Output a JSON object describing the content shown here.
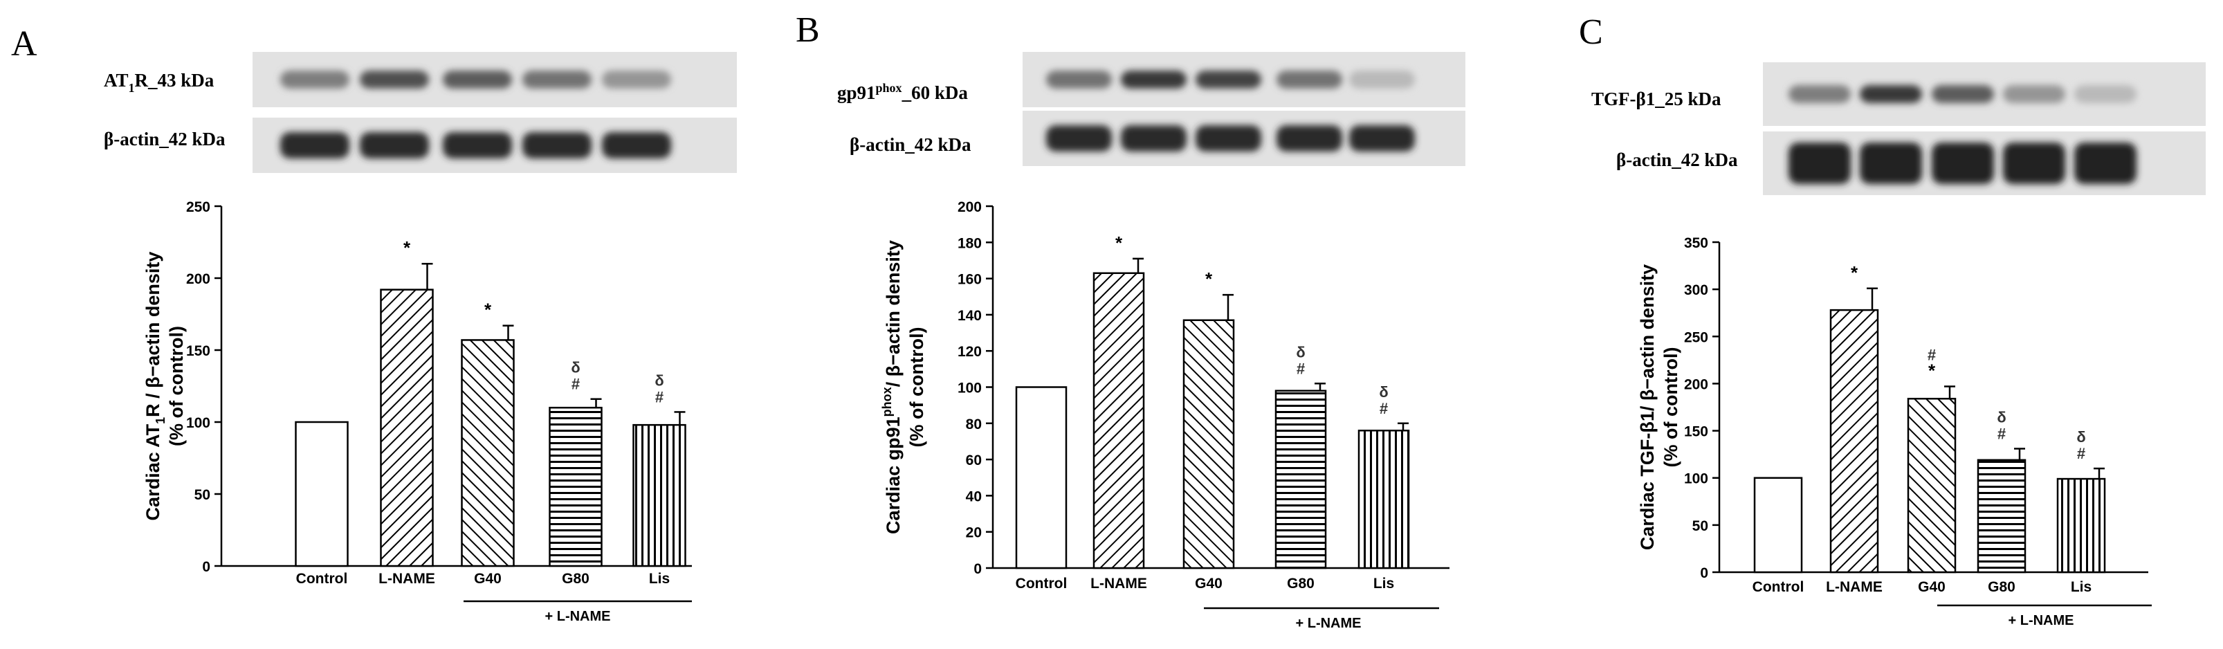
{
  "panels": [
    {
      "letter": "A",
      "blot_labels": [
        {
          "text": "AT",
          "sub": "1",
          "rest": "R_43 kDa"
        },
        {
          "text": "β-actin_42 kDa",
          "sub": "",
          "rest": ""
        }
      ]
    },
    {
      "letter": "B",
      "blot_labels": [
        {
          "text": "gp91",
          "sup": "phox",
          "rest": "_60 kDa"
        },
        {
          "text": "β-actin_42 kDa",
          "sup": "",
          "rest": ""
        }
      ]
    },
    {
      "letter": "C",
      "blot_labels": [
        {
          "text": "TGF-β1_25 kDa"
        },
        {
          "text": "β-actin_42 kDa"
        }
      ]
    }
  ],
  "chart_data": [
    {
      "type": "bar",
      "categories": [
        "Control",
        "L-NAME",
        "G40",
        "G80",
        "Lis"
      ],
      "group_label": "+ L-NAME",
      "values": [
        100,
        192,
        157,
        110,
        98
      ],
      "errors": [
        0,
        18,
        10,
        6,
        9
      ],
      "annotations": [
        [],
        [
          "*"
        ],
        [
          "*"
        ],
        [
          "#",
          "δ"
        ],
        [
          "#",
          "δ"
        ]
      ],
      "ylabel_line1": {
        "pre": "Cardiac AT",
        "sub": "1",
        "post": "R / β−actin density"
      },
      "ylabel_line2": "(% of control)",
      "ylim": [
        0,
        250
      ],
      "yticks": [
        0,
        50,
        100,
        150,
        200,
        250
      ],
      "patterns": [
        "none",
        "diag-back",
        "diag-fwd",
        "horizontal",
        "vertical"
      ]
    },
    {
      "type": "bar",
      "categories": [
        "Control",
        "L-NAME",
        "G40",
        "G80",
        "Lis"
      ],
      "group_label": "+ L-NAME",
      "values": [
        100,
        163,
        137,
        98,
        76
      ],
      "errors": [
        0,
        8,
        14,
        4,
        4
      ],
      "annotations": [
        [],
        [
          "*"
        ],
        [
          "*"
        ],
        [
          "#",
          "δ"
        ],
        [
          "#",
          "δ"
        ]
      ],
      "ylabel_line1": {
        "pre": "Cardiac gp91",
        "sup": "phox",
        "post": "/ β−actin density"
      },
      "ylabel_line2": "(% of control)",
      "ylim": [
        0,
        200
      ],
      "yticks": [
        0,
        20,
        40,
        60,
        80,
        100,
        120,
        140,
        160,
        180,
        200
      ],
      "patterns": [
        "none",
        "diag-back",
        "diag-fwd",
        "horizontal",
        "vertical"
      ]
    },
    {
      "type": "bar",
      "categories": [
        "Control",
        "L-NAME",
        "G40",
        "G80",
        "Lis"
      ],
      "group_label": "+ L-NAME",
      "values": [
        100,
        278,
        184,
        119,
        99
      ],
      "errors": [
        0,
        23,
        13,
        12,
        11
      ],
      "annotations": [
        [],
        [
          "*"
        ],
        [
          "*",
          "#"
        ],
        [
          "#",
          "δ"
        ],
        [
          "#",
          "δ"
        ]
      ],
      "ylabel_line1": {
        "pre": "Cardiac TGF-β1/ β−actin density"
      },
      "ylabel_line2": "(% of control)",
      "ylim": [
        0,
        350
      ],
      "yticks": [
        0,
        50,
        100,
        150,
        200,
        250,
        300,
        350
      ],
      "patterns": [
        "none",
        "diag-back",
        "diag-fwd",
        "horizontal",
        "vertical"
      ]
    }
  ],
  "blots": [
    {
      "top_intensity": [
        0.55,
        0.75,
        0.7,
        0.6,
        0.45
      ],
      "bottom_intensity": [
        0.9,
        0.9,
        0.9,
        0.9,
        0.9
      ]
    },
    {
      "top_intensity": [
        0.6,
        0.85,
        0.8,
        0.6,
        0.3
      ],
      "bottom_intensity": [
        0.9,
        0.9,
        0.9,
        0.9,
        0.9
      ]
    },
    {
      "top_intensity": [
        0.55,
        0.85,
        0.7,
        0.45,
        0.3
      ],
      "bottom_intensity": [
        0.95,
        0.95,
        0.95,
        0.95,
        0.95
      ]
    }
  ]
}
